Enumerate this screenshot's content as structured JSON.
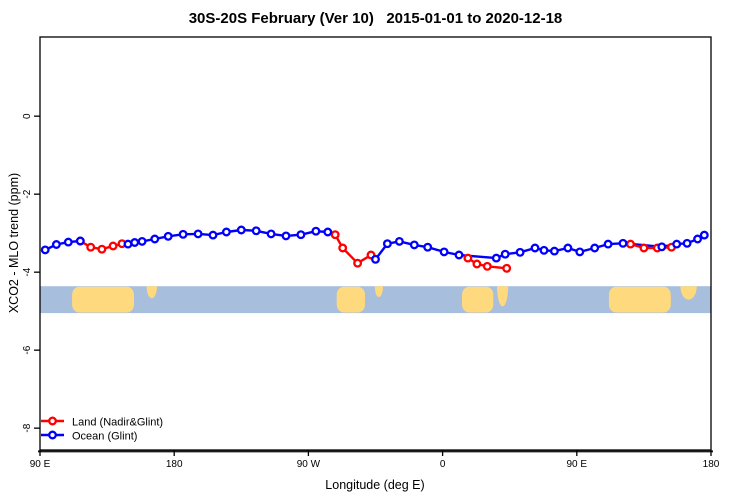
{
  "title": "30S-20S February (Ver 10)   2015-01-01 to 2020-12-18",
  "legend": {
    "items": [
      {
        "label": "Land (Nadir&Glint)",
        "color": "#ff0000",
        "series": "land"
      },
      {
        "label": "Ocean (Glint)",
        "color": "#0000ff",
        "series": "ocean"
      }
    ]
  },
  "chart_data": {
    "type": "line",
    "title": "30S-20S February (Ver 10)   2015-01-01 to 2020-12-18",
    "xlabel": "Longitude (deg E)",
    "ylabel": "XCO2 - MLO trend (ppm)",
    "xlim": [
      90,
      540
    ],
    "ylim": [
      -8.56,
      2.03
    ],
    "x_axis_note": "longitude axis runs eastward from 90E, wrapping: 90E,180,90W,0,90E,180",
    "x_ticks": [
      {
        "value": 90,
        "label": "90 E"
      },
      {
        "value": 180,
        "label": "180"
      },
      {
        "value": 270,
        "label": "90 W"
      },
      {
        "value": 360,
        "label": "0"
      },
      {
        "value": 450,
        "label": "90 E"
      },
      {
        "value": 540,
        "label": "180"
      }
    ],
    "y_ticks": [
      {
        "value": 0,
        "label": "0"
      },
      {
        "value": -2,
        "label": "-2"
      },
      {
        "value": -4,
        "label": "-4"
      },
      {
        "value": -6,
        "label": "-6"
      },
      {
        "value": -8,
        "label": "-8"
      }
    ],
    "grid": false,
    "legend_position": "bottom-left",
    "series": [
      {
        "id": "ocean",
        "name": "Ocean (Glint)",
        "color": "#0000ff",
        "segments": [
          {
            "line": [
              [
                93.5,
                -3.43
              ],
              [
                101,
                -3.29
              ],
              [
                109,
                -3.23
              ],
              [
                117,
                -3.2
              ]
            ]
          },
          {
            "line": [
              [
                149,
                -3.28
              ],
              [
                153.5,
                -3.24
              ],
              [
                158.5,
                -3.21
              ],
              [
                167,
                -3.15
              ],
              [
                176,
                -3.08
              ],
              [
                186,
                -3.03
              ],
              [
                196,
                -3.02
              ],
              [
                206,
                -3.05
              ],
              [
                215,
                -2.97
              ],
              [
                225,
                -2.92
              ],
              [
                235,
                -2.94
              ],
              [
                245,
                -3.02
              ],
              [
                255,
                -3.07
              ],
              [
                265,
                -3.04
              ],
              [
                275,
                -2.95
              ],
              [
                283,
                -2.97
              ]
            ]
          },
          {
            "line": [
              [
                315,
                -3.67
              ],
              [
                323,
                -3.27
              ],
              [
                331,
                -3.21
              ],
              [
                341,
                -3.3
              ],
              [
                350,
                -3.36
              ],
              [
                361,
                -3.48
              ],
              [
                371,
                -3.56
              ],
              [
                396,
                -3.64
              ],
              [
                402,
                -3.54
              ],
              [
                412,
                -3.49
              ],
              [
                422,
                -3.38
              ],
              [
                428,
                -3.44
              ],
              [
                435,
                -3.46
              ],
              [
                444,
                -3.38
              ],
              [
                452,
                -3.48
              ],
              [
                462,
                -3.38
              ],
              [
                471,
                -3.28
              ],
              [
                481,
                -3.26
              ],
              [
                507,
                -3.35
              ],
              [
                517,
                -3.28
              ],
              [
                524,
                -3.26
              ],
              [
                531,
                -3.15
              ],
              [
                535.5,
                -3.05
              ]
            ]
          }
        ]
      },
      {
        "id": "land",
        "name": "Land (Nadir&Glint)",
        "color": "#ff0000",
        "segments": [
          {
            "line": [
              [
                117,
                -3.2
              ],
              [
                124,
                -3.36
              ],
              [
                131.5,
                -3.41
              ],
              [
                139,
                -3.33
              ],
              [
                145,
                -3.27
              ],
              [
                149,
                -3.28
              ]
            ],
            "markers": [
              [
                117,
                -3.2
              ],
              [
                124,
                -3.36
              ],
              [
                131.5,
                -3.41
              ],
              [
                139,
                -3.33
              ],
              [
                145,
                -3.27
              ]
            ]
          },
          {
            "line": [
              [
                283,
                -2.97
              ],
              [
                288,
                -3.04
              ],
              [
                293,
                -3.38
              ],
              [
                303,
                -3.77
              ],
              [
                312,
                -3.56
              ],
              [
                315,
                -3.67
              ]
            ],
            "markers": [
              [
                288,
                -3.04
              ],
              [
                293,
                -3.38
              ],
              [
                303,
                -3.77
              ],
              [
                312,
                -3.56
              ]
            ]
          },
          {
            "line": [
              [
                377,
                -3.64
              ],
              [
                383,
                -3.79
              ],
              [
                390,
                -3.85
              ],
              [
                403,
                -3.9
              ]
            ]
          },
          {
            "line": [
              [
                486,
                -3.28
              ],
              [
                495,
                -3.38
              ],
              [
                504,
                -3.38
              ],
              [
                513.5,
                -3.36
              ]
            ]
          }
        ]
      }
    ],
    "map_band": {
      "description": "latitude-band world map strip 30S-20S",
      "ocean_color": "#a8bedd",
      "land_color": "#fed97e",
      "value_top": -4.36,
      "value_bottom": -5.05,
      "landmasses": [
        {
          "name": "australia",
          "lon": [
            111.5,
            153
          ],
          "depth": 1
        },
        {
          "name": "new-caledonia-fiji",
          "lon": [
            161.5,
            168.5
          ],
          "depth": 0.45
        },
        {
          "name": "south-america",
          "lon": [
            289,
            308
          ],
          "depth": 1
        },
        {
          "name": "east-brazil-tip",
          "lon": [
            314.5,
            320
          ],
          "depth": 0.4
        },
        {
          "name": "southern-africa",
          "lon": [
            373,
            394
          ],
          "depth": 1
        },
        {
          "name": "madagascar",
          "lon": [
            396.5,
            404
          ],
          "depth": 0.75
        },
        {
          "name": "australia-repeat",
          "lon": [
            471.5,
            513
          ],
          "depth": 1
        },
        {
          "name": "new-caledonia-fiji-repeat",
          "lon": [
            519.5,
            530.5
          ],
          "depth": 0.5
        }
      ]
    }
  }
}
